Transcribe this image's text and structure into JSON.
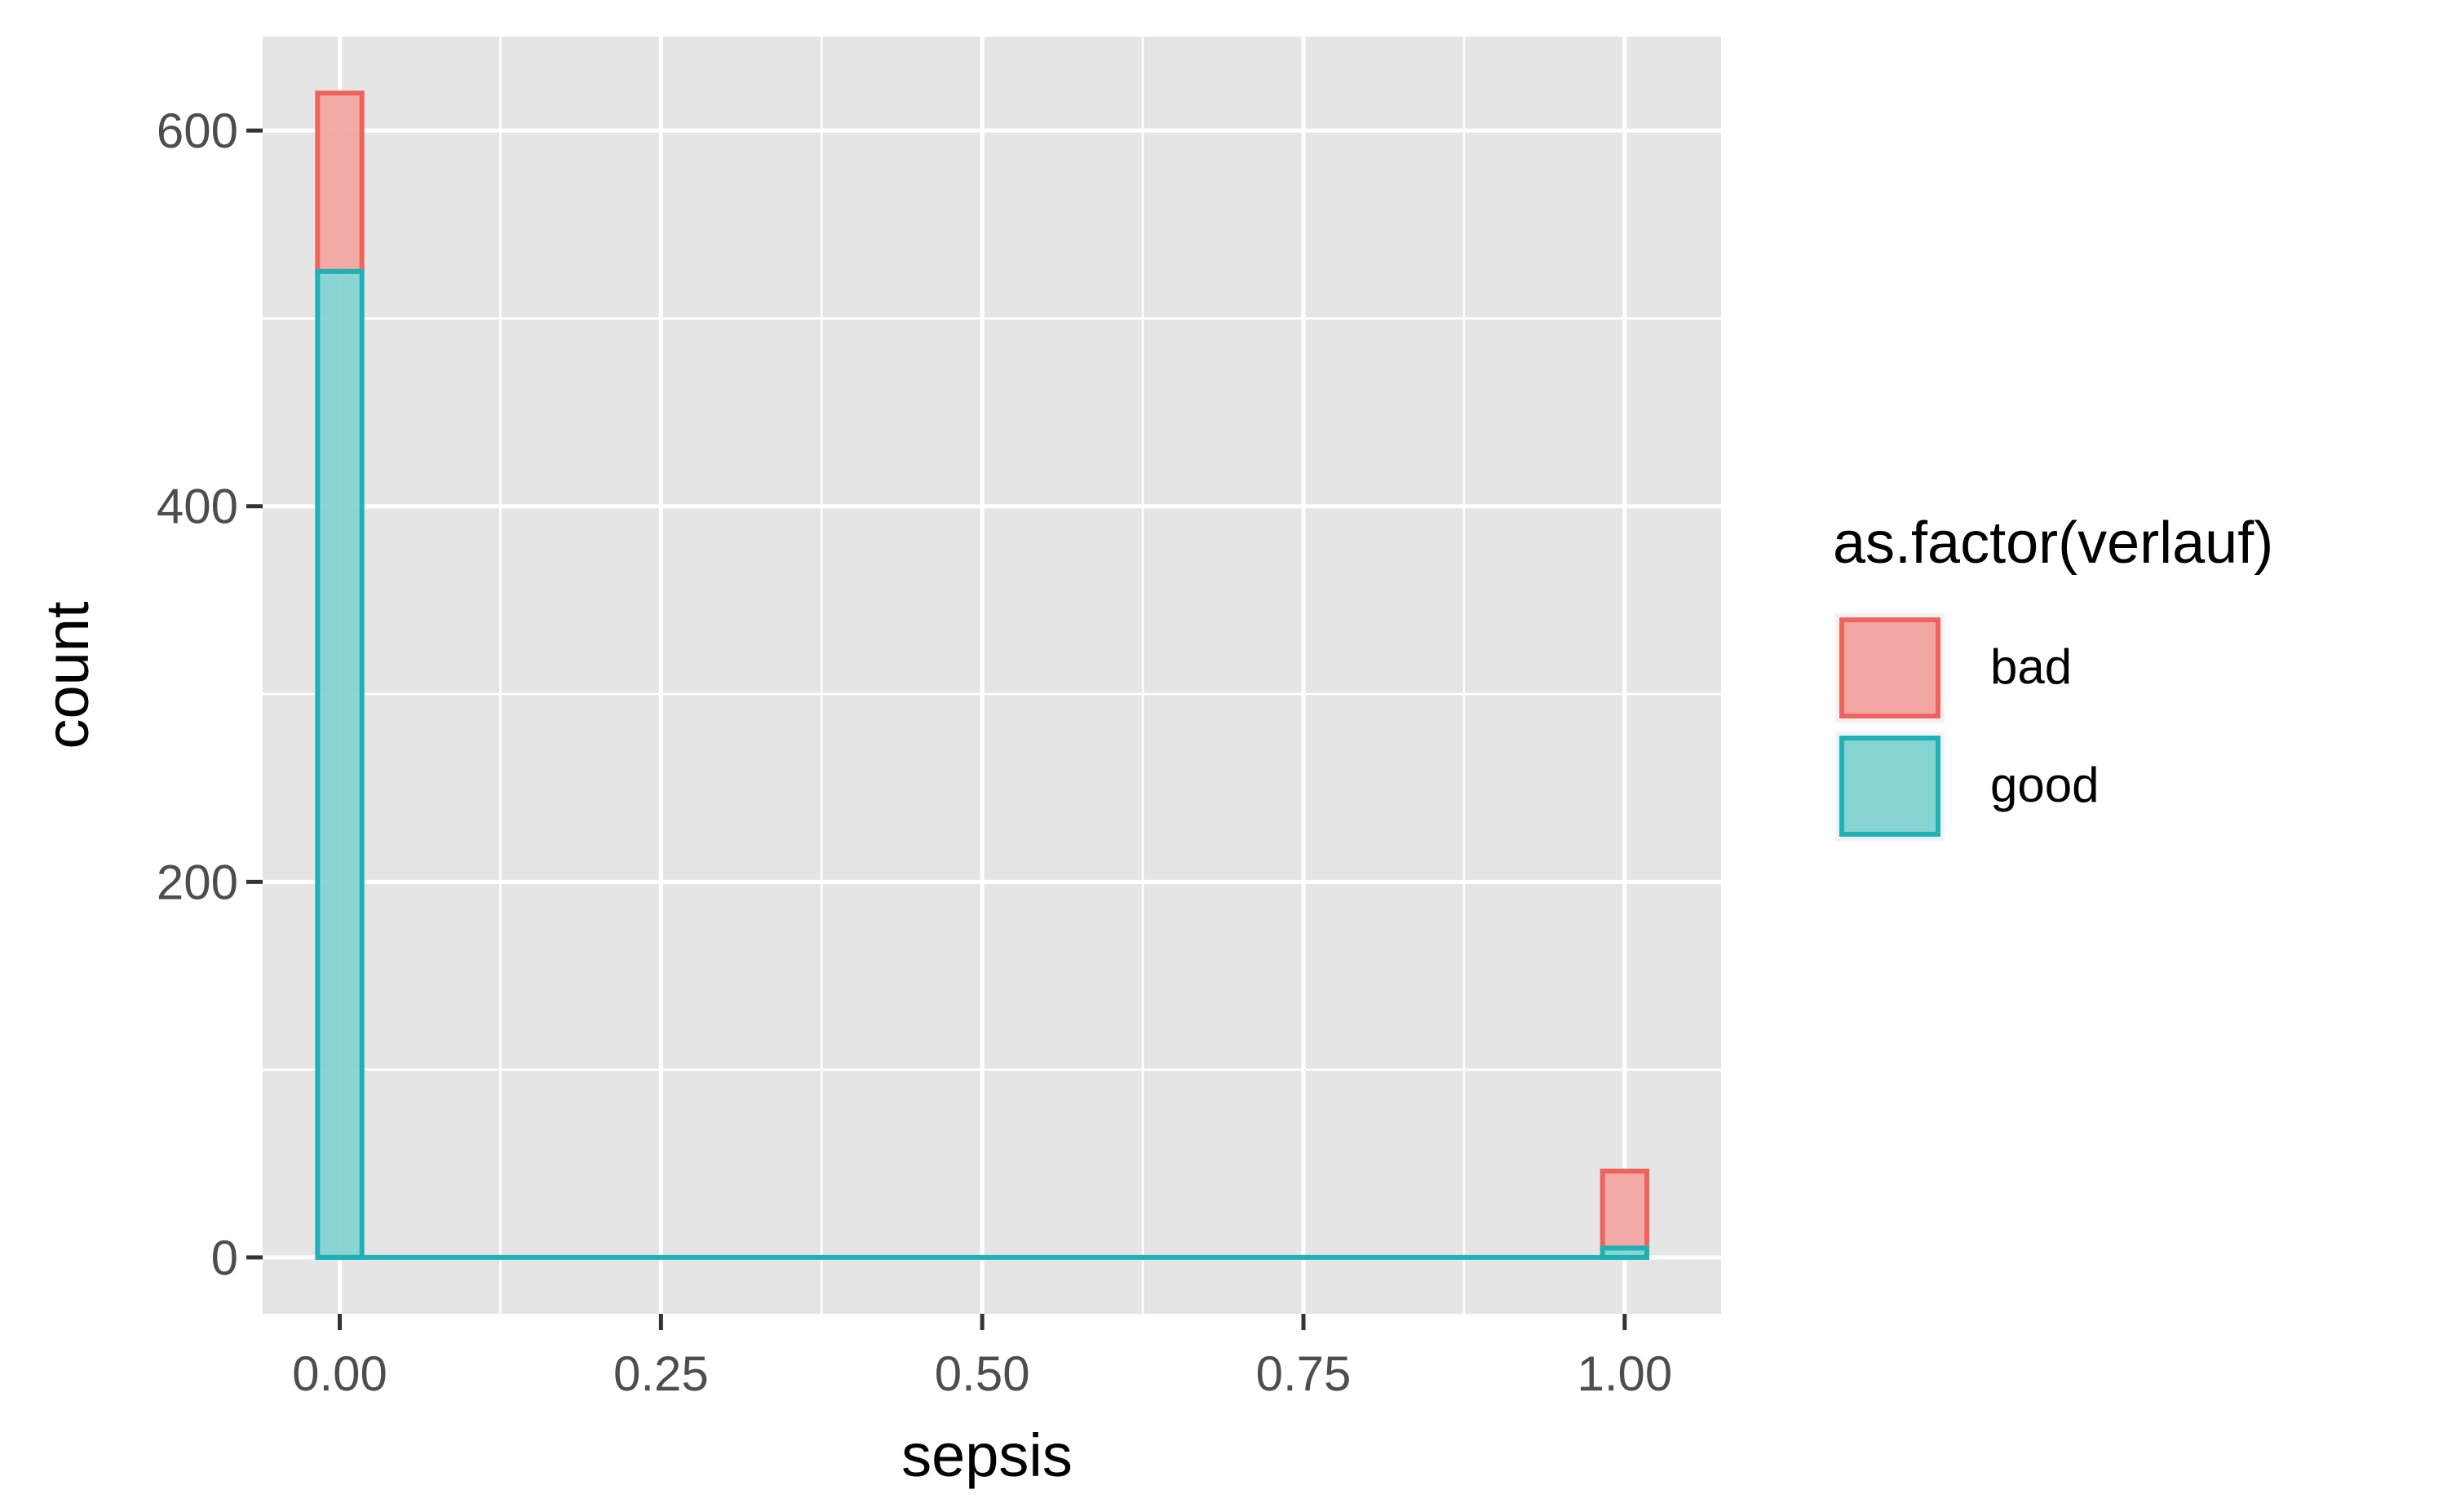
{
  "chart_data": {
    "type": "bar",
    "subtype": "stacked-histogram",
    "xlabel": "sepsis",
    "ylabel": "count",
    "xlim": [
      -0.06,
      1.075
    ],
    "ylim": [
      -30,
      650
    ],
    "x_ticks": [
      0,
      0.25,
      0.5,
      0.75,
      1.0
    ],
    "x_tick_labels": [
      "0.00",
      "0.25",
      "0.50",
      "0.75",
      "1.00"
    ],
    "y_ticks": [
      0,
      200,
      400,
      600
    ],
    "y_tick_labels": [
      "0",
      "200",
      "400",
      "600"
    ],
    "grid": true,
    "legend_position": "right",
    "legend_title": "as.factor(verlauf)",
    "bin_width": 0.0345,
    "series": [
      {
        "name": "bad",
        "fill": "#F2A6A3",
        "stroke": "#F0635D",
        "bins": [
          {
            "x": 0.0,
            "ymin": 525,
            "ymax": 620
          },
          {
            "x": 1.0,
            "ymin": 5,
            "ymax": 46
          }
        ]
      },
      {
        "name": "good",
        "fill": "#85D3D3",
        "stroke": "#1FB1B5",
        "bins": [
          {
            "x": 0.0,
            "ymin": 0,
            "ymax": 525
          },
          {
            "x": 1.0,
            "ymin": 0,
            "ymax": 5
          }
        ],
        "baseline": {
          "from": -0.0172,
          "to": 1.0172,
          "y": 0
        }
      }
    ],
    "colors": {
      "panel_background": "#E5E5E5",
      "grid": "#FFFFFF",
      "axis_text": "#4D4D4D",
      "axis_title": "#000000"
    }
  }
}
